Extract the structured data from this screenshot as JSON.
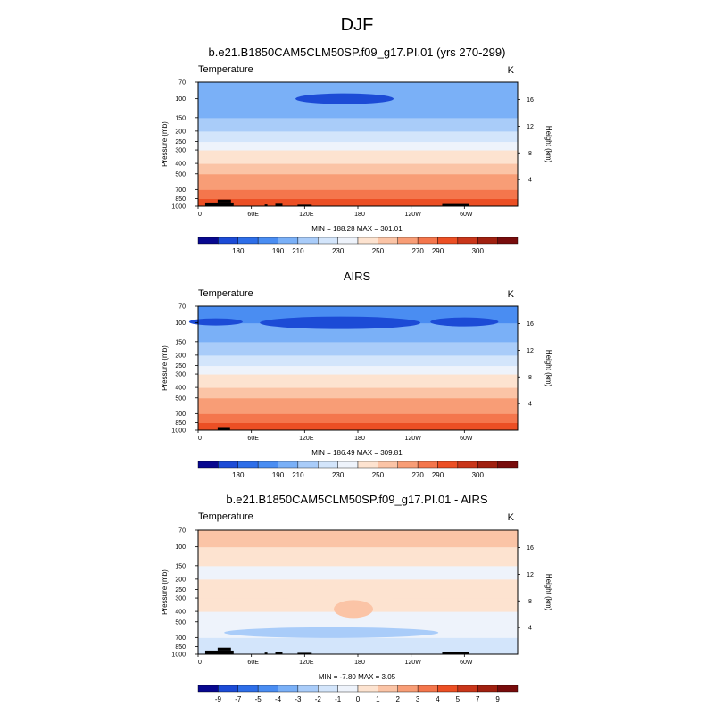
{
  "figure": {
    "season_title": "DJF"
  },
  "panels": [
    {
      "title": "b.e21.B1850CAM5CLM50SP.f09_g17.PI.01 (yrs 270-299)",
      "left_label": "Temperature",
      "right_label": "K",
      "stats": "MIN = 188.28  MAX = 301.01"
    },
    {
      "title": "AIRS",
      "left_label": "Temperature",
      "right_label": "K",
      "stats": "MIN = 186.49  MAX = 309.81"
    },
    {
      "title": "b.e21.B1850CAM5CLM50SP.f09_g17.PI.01 - AIRS",
      "left_label": "Temperature",
      "right_label": "K",
      "stats": "MIN =  -7.80  MAX =   3.05"
    }
  ],
  "chart_data": [
    {
      "type": "heatmap",
      "title": "b.e21.B1850CAM5CLM50SP.f09_g17.PI.01 (yrs 270-299)",
      "xlabel": "",
      "ylabel": "Pressure (mb)",
      "y2label": "Height (km)",
      "x_ticks": [
        "0",
        "60E",
        "120E",
        "180",
        "120W",
        "60W"
      ],
      "x_tick_lon": [
        0,
        60,
        120,
        180,
        240,
        300
      ],
      "xlim": [
        0,
        360
      ],
      "y_ticks": [
        "70",
        "100",
        "150",
        "200",
        "250",
        "300",
        "400",
        "500",
        "700",
        "850",
        "1000"
      ],
      "y_tick_mb": [
        70,
        100,
        150,
        200,
        250,
        300,
        400,
        500,
        700,
        850,
        1000
      ],
      "ylim_mb": [
        1000,
        70
      ],
      "y2_ticks": [
        "4",
        "8",
        "12",
        "16"
      ],
      "y2_tick_km": [
        4,
        8,
        12,
        16
      ],
      "levels_mb": [
        1000,
        850,
        700,
        500,
        400,
        300,
        250,
        200,
        150,
        100,
        70
      ],
      "zonal_temperature_K": [
        287,
        280,
        275,
        262,
        252,
        238,
        227,
        217,
        206,
        196,
        204
      ],
      "min": 188.28,
      "max": 301.01,
      "colorbar": {
        "labels": [
          "180",
          "190",
          "210",
          "230",
          "250",
          "270",
          "290",
          "300"
        ],
        "levels": [
          180,
          185,
          190,
          200,
          210,
          220,
          230,
          240,
          250,
          260,
          270,
          280,
          290,
          295,
          300
        ],
        "colors": [
          "#08088f",
          "#1c4bd6",
          "#2e6ee8",
          "#4a8df2",
          "#7ab0f7",
          "#a9ccf9",
          "#d3e5fb",
          "#eef3fb",
          "#fde3d0",
          "#fbc4a6",
          "#f89d76",
          "#f4764c",
          "#ec4f24",
          "#c9361a",
          "#a02010",
          "#780c0c"
        ]
      }
    },
    {
      "type": "heatmap",
      "title": "AIRS",
      "xlabel": "",
      "ylabel": "Pressure (mb)",
      "y2label": "Height (km)",
      "x_ticks": [
        "0",
        "60E",
        "120E",
        "180",
        "120W",
        "60W"
      ],
      "x_tick_lon": [
        0,
        60,
        120,
        180,
        240,
        300
      ],
      "xlim": [
        0,
        360
      ],
      "y_ticks": [
        "70",
        "100",
        "150",
        "200",
        "250",
        "300",
        "400",
        "500",
        "700",
        "850",
        "1000"
      ],
      "y_tick_mb": [
        70,
        100,
        150,
        200,
        250,
        300,
        400,
        500,
        700,
        850,
        1000
      ],
      "ylim_mb": [
        1000,
        70
      ],
      "y2_ticks": [
        "4",
        "8",
        "12",
        "16"
      ],
      "y2_tick_km": [
        4,
        8,
        12,
        16
      ],
      "levels_mb": [
        1000,
        850,
        700,
        500,
        400,
        300,
        250,
        200,
        150,
        100,
        70
      ],
      "zonal_temperature_K": [
        292,
        282,
        276,
        263,
        253,
        239,
        228,
        218,
        207,
        195,
        203
      ],
      "min": 186.49,
      "max": 309.81,
      "colorbar": {
        "labels": [
          "180",
          "190",
          "210",
          "230",
          "250",
          "270",
          "290",
          "300"
        ],
        "levels": [
          180,
          185,
          190,
          200,
          210,
          220,
          230,
          240,
          250,
          260,
          270,
          280,
          290,
          295,
          300
        ],
        "colors": [
          "#08088f",
          "#1c4bd6",
          "#2e6ee8",
          "#4a8df2",
          "#7ab0f7",
          "#a9ccf9",
          "#d3e5fb",
          "#eef3fb",
          "#fde3d0",
          "#fbc4a6",
          "#f89d76",
          "#f4764c",
          "#ec4f24",
          "#c9361a",
          "#a02010",
          "#780c0c"
        ]
      }
    },
    {
      "type": "heatmap",
      "title": "b.e21.B1850CAM5CLM50SP.f09_g17.PI.01 - AIRS",
      "xlabel": "",
      "ylabel": "Pressure (mb)",
      "y2label": "Height (km)",
      "x_ticks": [
        "0",
        "60E",
        "120E",
        "180",
        "120W",
        "60W"
      ],
      "x_tick_lon": [
        0,
        60,
        120,
        180,
        240,
        300
      ],
      "xlim": [
        0,
        360
      ],
      "y_ticks": [
        "70",
        "100",
        "150",
        "200",
        "250",
        "300",
        "400",
        "500",
        "700",
        "850",
        "1000"
      ],
      "y_tick_mb": [
        70,
        100,
        150,
        200,
        250,
        300,
        400,
        500,
        700,
        850,
        1000
      ],
      "ylim_mb": [
        1000,
        70
      ],
      "y2_ticks": [
        "4",
        "8",
        "12",
        "16"
      ],
      "y2_tick_km": [
        4,
        8,
        12,
        16
      ],
      "levels_mb": [
        1000,
        850,
        700,
        500,
        400,
        300,
        250,
        200,
        150,
        100,
        70
      ],
      "zonal_difference_K": [
        -2.5,
        -1.5,
        -1.5,
        -0.5,
        -0.5,
        0.5,
        0.5,
        -0.5,
        -0.5,
        1.5,
        0.5
      ],
      "min": -7.8,
      "max": 3.05,
      "colorbar": {
        "labels": [
          "-9",
          "-7",
          "-5",
          "-4",
          "-3",
          "-2",
          "-1",
          "0",
          "1",
          "2",
          "3",
          "4",
          "5",
          "7",
          "9"
        ],
        "levels": [
          -9,
          -7,
          -5,
          -4,
          -3,
          -2,
          -1,
          0,
          1,
          2,
          3,
          4,
          5,
          7,
          9
        ],
        "colors": [
          "#08088f",
          "#1c4bd6",
          "#2e6ee8",
          "#4a8df2",
          "#7ab0f7",
          "#a9ccf9",
          "#d3e5fb",
          "#eef3fb",
          "#fde3d0",
          "#fbc4a6",
          "#f89d76",
          "#f4764c",
          "#ec4f24",
          "#c9361a",
          "#a02010",
          "#780c0c"
        ]
      }
    }
  ]
}
